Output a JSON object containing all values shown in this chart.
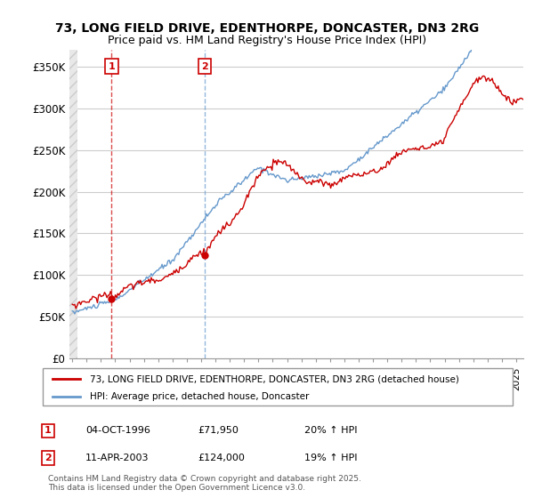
{
  "title_line1": "73, LONG FIELD DRIVE, EDENTHORPE, DONCASTER, DN3 2RG",
  "title_line2": "Price paid vs. HM Land Registry's House Price Index (HPI)",
  "ylim": [
    0,
    370000
  ],
  "yticks": [
    0,
    50000,
    100000,
    150000,
    200000,
    250000,
    300000,
    350000
  ],
  "ytick_labels": [
    "£0",
    "£50K",
    "£100K",
    "£150K",
    "£200K",
    "£250K",
    "£300K",
    "£350K"
  ],
  "sale1_x": 1996.75,
  "sale1_price": 71950,
  "sale2_x": 2003.25,
  "sale2_price": 124000,
  "legend_line1": "73, LONG FIELD DRIVE, EDENTHORPE, DONCASTER, DN3 2RG (detached house)",
  "legend_line2": "HPI: Average price, detached house, Doncaster",
  "annotation1_date": "04-OCT-1996",
  "annotation1_price": "£71,950",
  "annotation1_hpi": "20% ↑ HPI",
  "annotation2_date": "11-APR-2003",
  "annotation2_price": "£124,000",
  "annotation2_hpi": "19% ↑ HPI",
  "footer": "Contains HM Land Registry data © Crown copyright and database right 2025.\nThis data is licensed under the Open Government Licence v3.0.",
  "line_color_red": "#cc0000",
  "line_color_blue": "#6699cc"
}
